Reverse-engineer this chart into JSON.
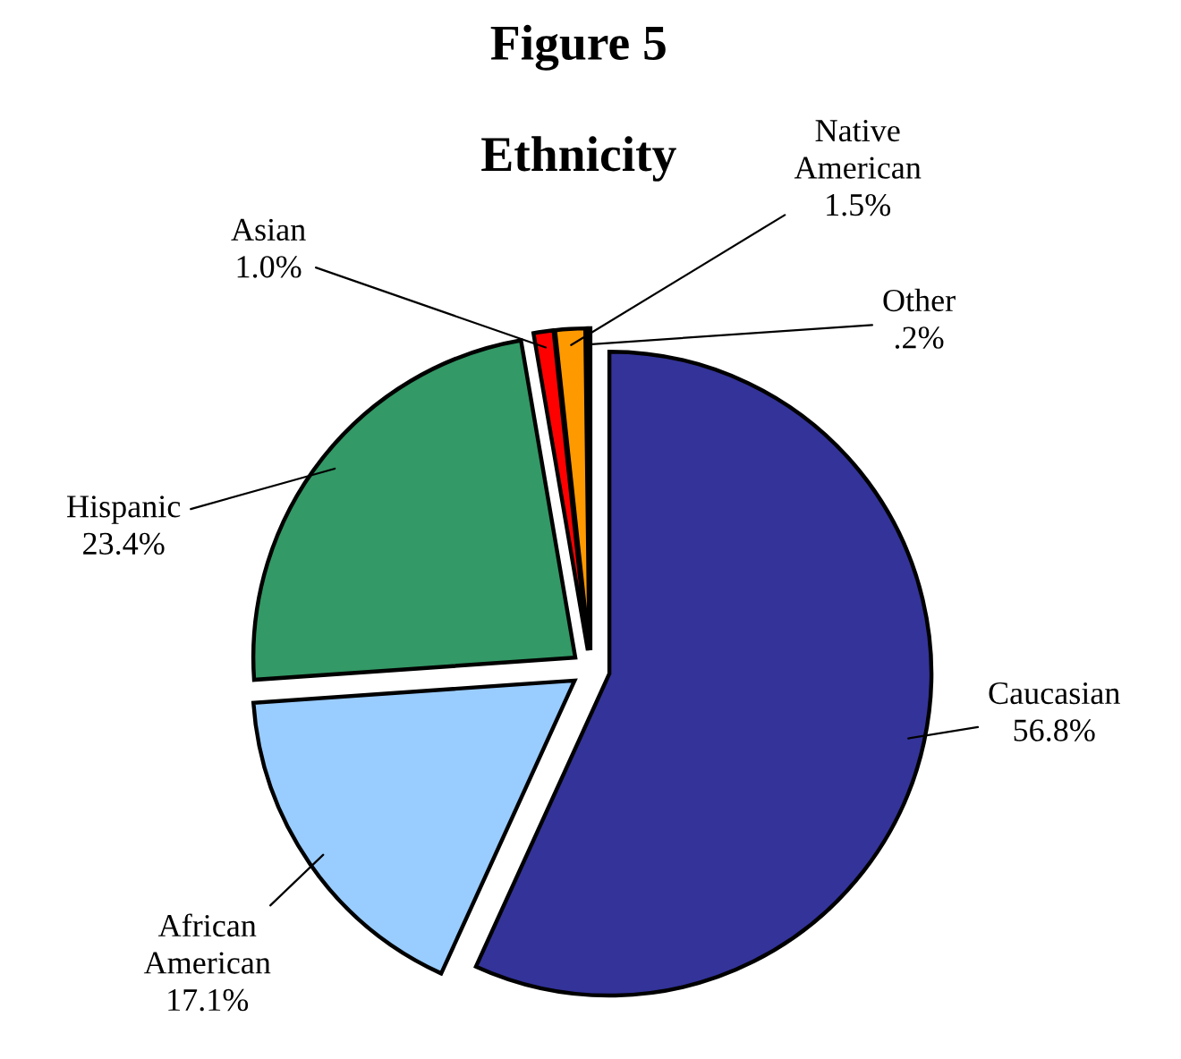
{
  "chart_data": {
    "type": "pie",
    "title": "Figure 5",
    "subtitle": "Ethnicity",
    "categories": [
      "Caucasian",
      "African American",
      "Hispanic",
      "Asian",
      "Native American",
      "Other"
    ],
    "values": [
      56.8,
      17.1,
      23.4,
      1.0,
      1.5,
      0.2
    ],
    "value_labels": [
      "56.8%",
      "17.1%",
      "23.4%",
      "1.0%",
      "1.5%",
      ".2%"
    ],
    "colors": [
      "#333399",
      "#99ccff",
      "#339966",
      "#ff0000",
      "#ff9900",
      "#990099"
    ]
  }
}
